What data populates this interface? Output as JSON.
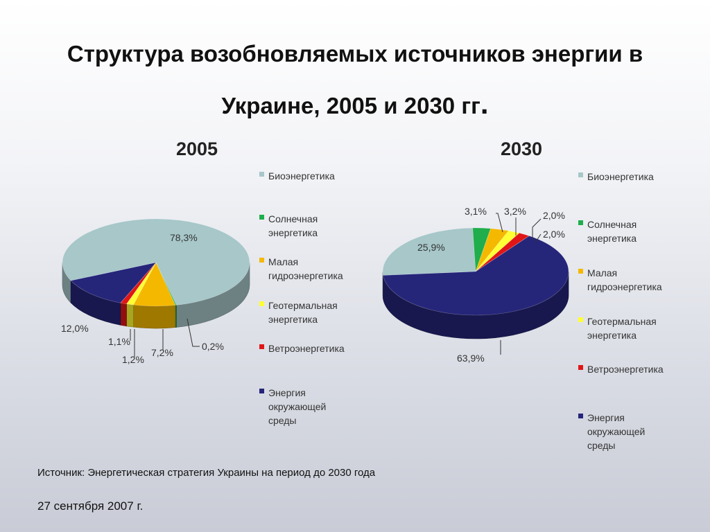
{
  "title": {
    "line1": "Структура возобновляемых источников энергии в",
    "line2": "Украине, 2005 и 2030 гг",
    "dot": "."
  },
  "chart_data": [
    {
      "type": "pie",
      "title": "2005",
      "legend_position": "right",
      "categories": [
        "Биоэнергетика",
        "Солнечная энергетика",
        "Малая гидроэнергетика",
        "Геотермальная энергетика",
        "Ветроэнергетика",
        "Энергия окружающей среды"
      ],
      "values": [
        78.3,
        0.2,
        7.2,
        1.2,
        1.1,
        12.0
      ],
      "labels": [
        "78,3%",
        "0,2%",
        "7,2%",
        "1,2%",
        "1,1%",
        "12,0%"
      ],
      "colors": [
        "#a7c7c9",
        "#1fae4b",
        "#f5b800",
        "#ffff33",
        "#e01616",
        "#25257a"
      ]
    },
    {
      "type": "pie",
      "title": "2030",
      "legend_position": "right",
      "categories": [
        "Биоэнергетика",
        "Солнечная энергетика",
        "Малая гидроэнергетика",
        "Геотермальная энергетика",
        "Ветроэнергетика",
        "Энергия окружающей среды"
      ],
      "values": [
        25.9,
        3.1,
        3.2,
        2.0,
        2.0,
        63.9
      ],
      "labels": [
        "25,9%",
        "3,1%",
        "3,2%",
        "2,0%",
        "2,0%",
        "63,9%"
      ],
      "colors": [
        "#a7c7c9",
        "#1fae4b",
        "#f5b800",
        "#ffff33",
        "#e01616",
        "#25257a"
      ]
    }
  ],
  "legend": {
    "items": [
      {
        "label": "Биоэнергетика",
        "color": "#a7c7c9"
      },
      {
        "label": "Солнечная\nэнергетика",
        "color": "#1fae4b"
      },
      {
        "label": "Малая\nгидроэнергетика",
        "color": "#f5b800"
      },
      {
        "label": "Геотермальная\nэнергетика",
        "color": "#ffff33"
      },
      {
        "label": "Ветроэнергетика",
        "color": "#e01616"
      },
      {
        "label": "Энергия\nокружающей\nсреды",
        "color": "#25257a"
      }
    ]
  },
  "source": "Источник: Энергетическая стратегия Украины на период до 2030 года",
  "date": "27 сентября 2007 г."
}
